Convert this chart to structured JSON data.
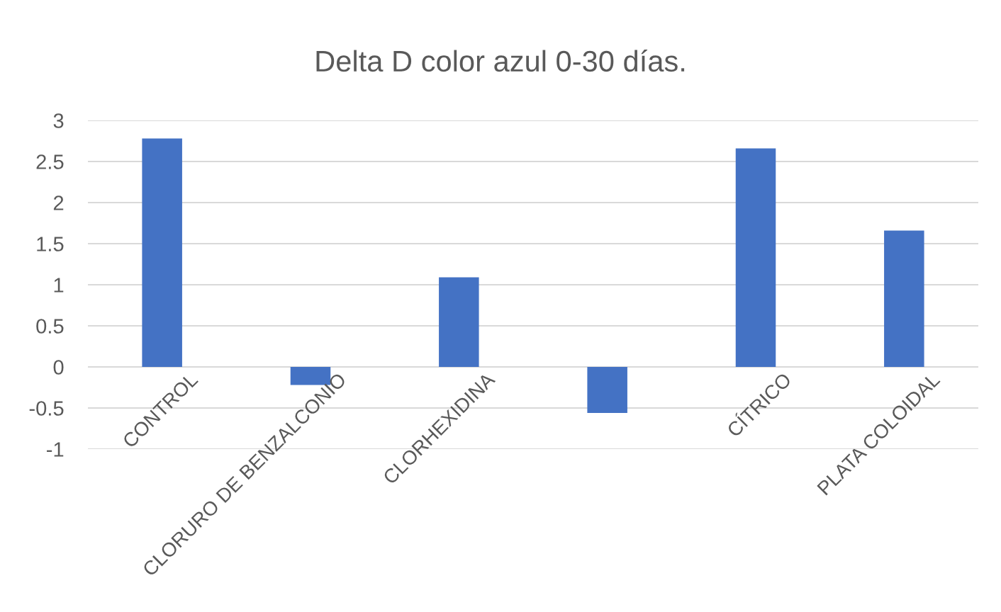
{
  "chart_data": {
    "type": "bar",
    "title": "Delta D color azul 0-30 días.",
    "categories": [
      "CONTROL",
      "CLORURO DE BENZALCONIO",
      "CLORHEXIDINA",
      null,
      "CÍTRICO",
      "PLATA COLOIDAL"
    ],
    "values": [
      2.78,
      -0.22,
      1.09,
      -0.56,
      2.66,
      1.66
    ],
    "color": "#4472c4",
    "ylim": [
      -1,
      3
    ],
    "yticks": [
      -1,
      -0.5,
      0,
      0.5,
      1,
      1.5,
      2,
      2.5,
      3
    ],
    "grid": "y"
  }
}
